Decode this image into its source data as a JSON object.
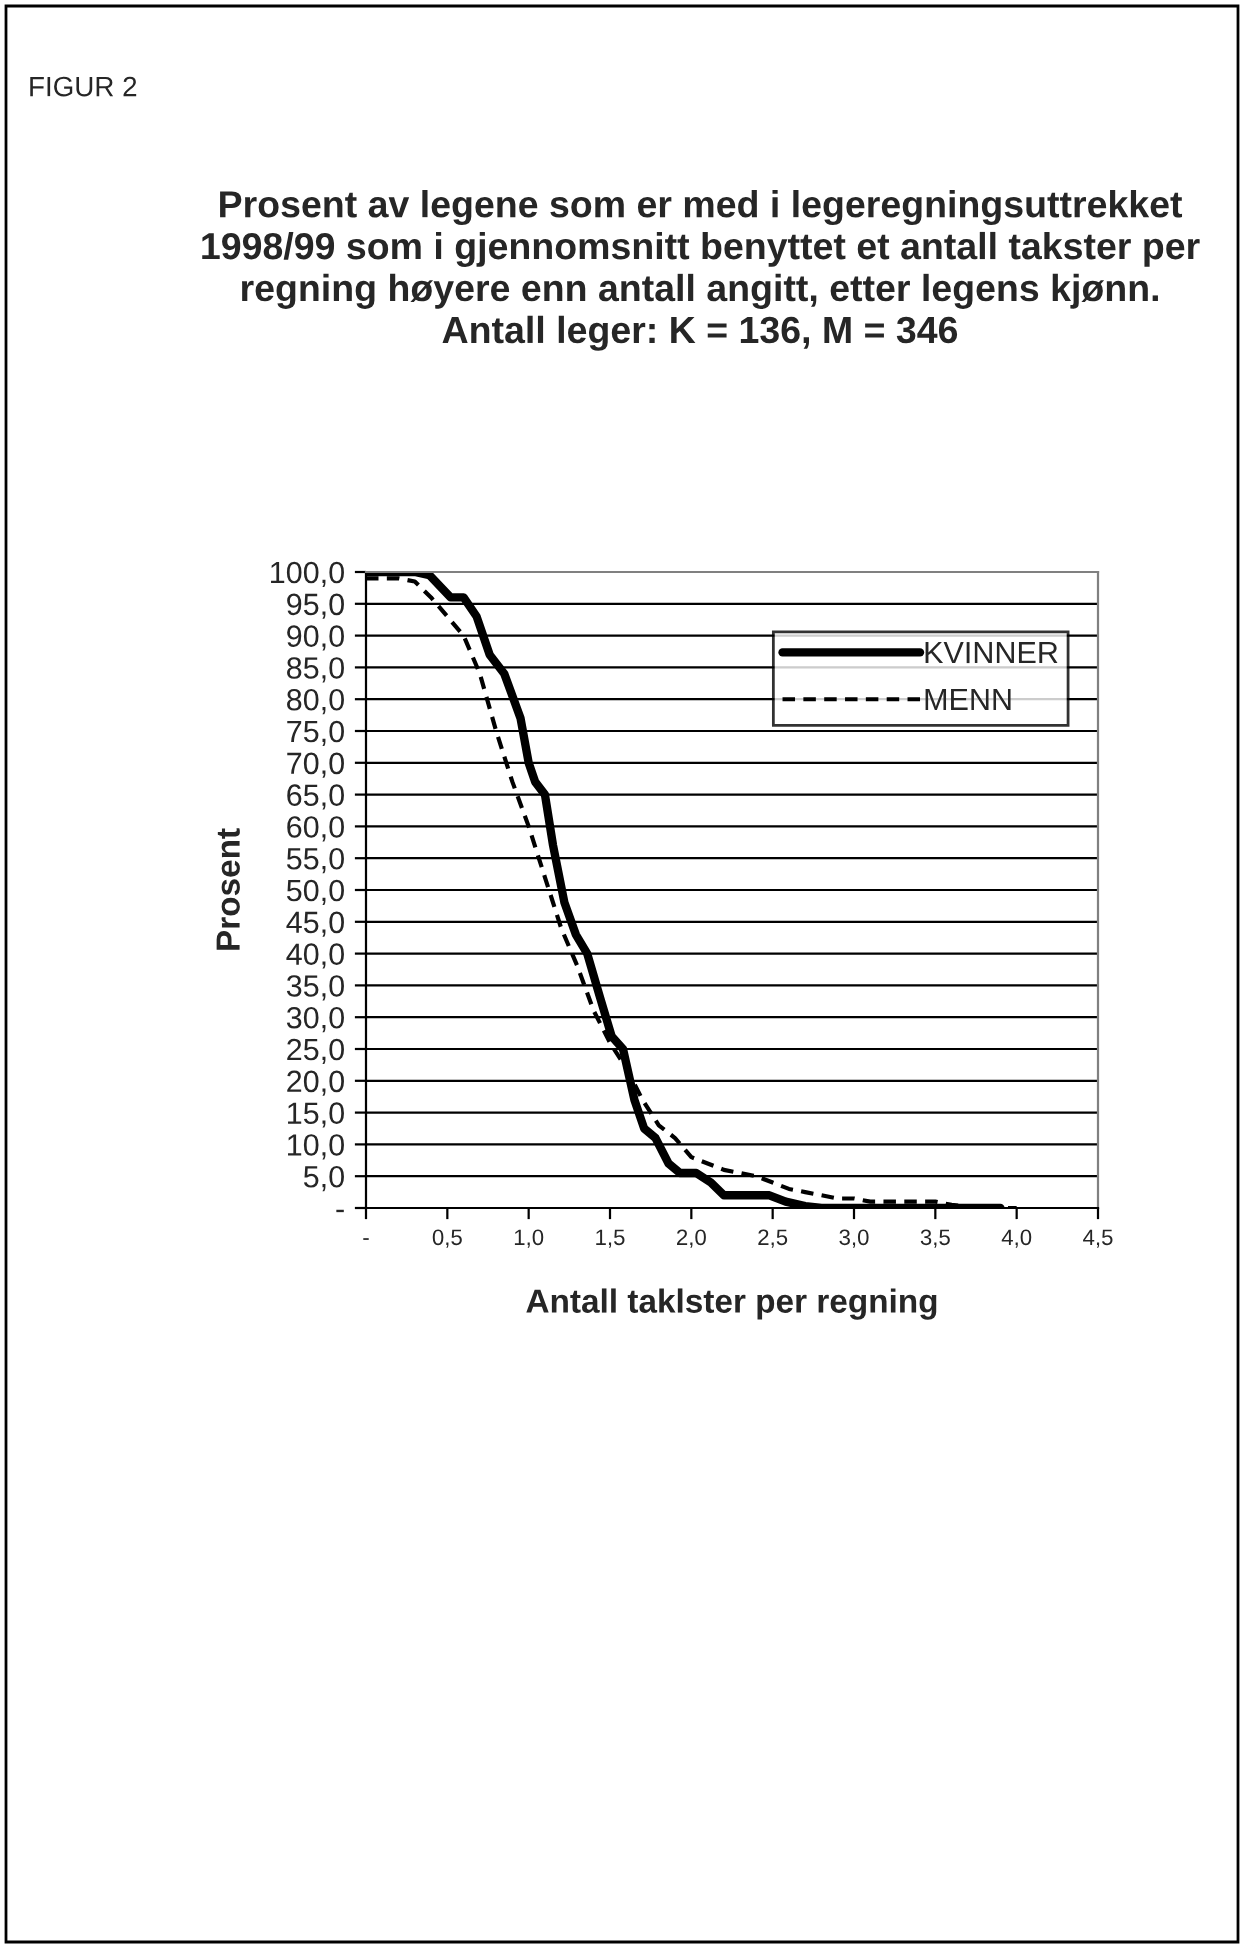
{
  "chart_data": {
    "type": "line",
    "title": "Prosent av legene som er med i legeregningsuttrekket 1998/99 som i gjennomsnitt benyttet et antall takster per regning høyere enn antall angitt, etter legens kjønn.\nAntall leger: K = 136, M = 346",
    "xlabel": "Antall taklster per regning",
    "ylabel": "Prosent",
    "annotations": [
      "FIGUR 2"
    ],
    "series": [
      {
        "name": "KVINNER",
        "color": "#000000",
        "line_style": "solid",
        "x": [
          0,
          0.3,
          0.39,
          0.52,
          0.6,
          0.68,
          0.76,
          0.85,
          0.95,
          1.0,
          1.04,
          1.1,
          1.15,
          1.22,
          1.29,
          1.36,
          1.44,
          1.51,
          1.58,
          1.65,
          1.71,
          1.78,
          1.86,
          1.93,
          2.03,
          2.12,
          2.2,
          2.36,
          2.48,
          2.58,
          2.7,
          2.8,
          3.5,
          3.9
        ],
        "values": [
          100,
          100,
          99.5,
          96,
          96,
          93,
          87,
          84,
          77,
          70,
          67,
          65,
          57,
          48,
          43,
          40,
          33,
          27,
          25,
          17,
          12.5,
          11,
          7,
          5.5,
          5.5,
          4,
          2,
          2,
          2,
          1,
          0.3,
          0,
          0,
          0
        ]
      },
      {
        "name": "MENN",
        "color": "#000000",
        "line_style": "dashed",
        "x": [
          0,
          0.2,
          0.3,
          0.4,
          0.5,
          0.6,
          0.7,
          0.8,
          0.9,
          1.0,
          1.1,
          1.2,
          1.3,
          1.4,
          1.5,
          1.6,
          1.7,
          1.8,
          1.9,
          2.0,
          2.1,
          2.2,
          2.3,
          2.4,
          2.5,
          2.6,
          2.7,
          2.8,
          2.9,
          3.0,
          3.1,
          3.3,
          3.5,
          3.6,
          3.7,
          3.9,
          4.0
        ],
        "values": [
          99,
          99,
          98.5,
          96,
          93,
          90,
          84,
          75,
          67,
          60,
          52,
          44,
          38,
          31,
          26,
          22,
          17,
          13,
          11,
          8,
          7,
          6,
          5.5,
          5,
          4,
          3,
          2.5,
          2,
          1.5,
          1.5,
          1,
          1,
          1,
          0.5,
          0.2,
          0,
          0
        ]
      }
    ],
    "xlim": [
      0,
      4.5
    ],
    "xticks": [
      {
        "value": 0,
        "label": "-"
      },
      {
        "value": 0.5,
        "label": "0,5"
      },
      {
        "value": 1.0,
        "label": "1,0"
      },
      {
        "value": 1.5,
        "label": "1,5"
      },
      {
        "value": 2.0,
        "label": "2,0"
      },
      {
        "value": 2.5,
        "label": "2,5"
      },
      {
        "value": 3.0,
        "label": "3,0"
      },
      {
        "value": 3.5,
        "label": "3,5"
      },
      {
        "value": 4.0,
        "label": "4,0"
      },
      {
        "value": 4.5,
        "label": "4,5"
      }
    ],
    "ylim": [
      0,
      100
    ],
    "yticks": [
      {
        "value": 0,
        "label": "-"
      },
      {
        "value": 5,
        "label": "5,0"
      },
      {
        "value": 10,
        "label": "10,0"
      },
      {
        "value": 15,
        "label": "15,0"
      },
      {
        "value": 20,
        "label": "20,0"
      },
      {
        "value": 25,
        "label": "25,0"
      },
      {
        "value": 30,
        "label": "30,0"
      },
      {
        "value": 35,
        "label": "35,0"
      },
      {
        "value": 40,
        "label": "40,0"
      },
      {
        "value": 45,
        "label": "45,0"
      },
      {
        "value": 50,
        "label": "50,0"
      },
      {
        "value": 55,
        "label": "55,0"
      },
      {
        "value": 60,
        "label": "60,0"
      },
      {
        "value": 65,
        "label": "65,0"
      },
      {
        "value": 70,
        "label": "70,0"
      },
      {
        "value": 75,
        "label": "75,0"
      },
      {
        "value": 80,
        "label": "80,0"
      },
      {
        "value": 85,
        "label": "85,0"
      },
      {
        "value": 90,
        "label": "90,0"
      },
      {
        "value": 95,
        "label": "95,0"
      },
      {
        "value": 100,
        "label": "100,0"
      }
    ],
    "grid": "y",
    "legend": "top right",
    "marker": "none"
  }
}
